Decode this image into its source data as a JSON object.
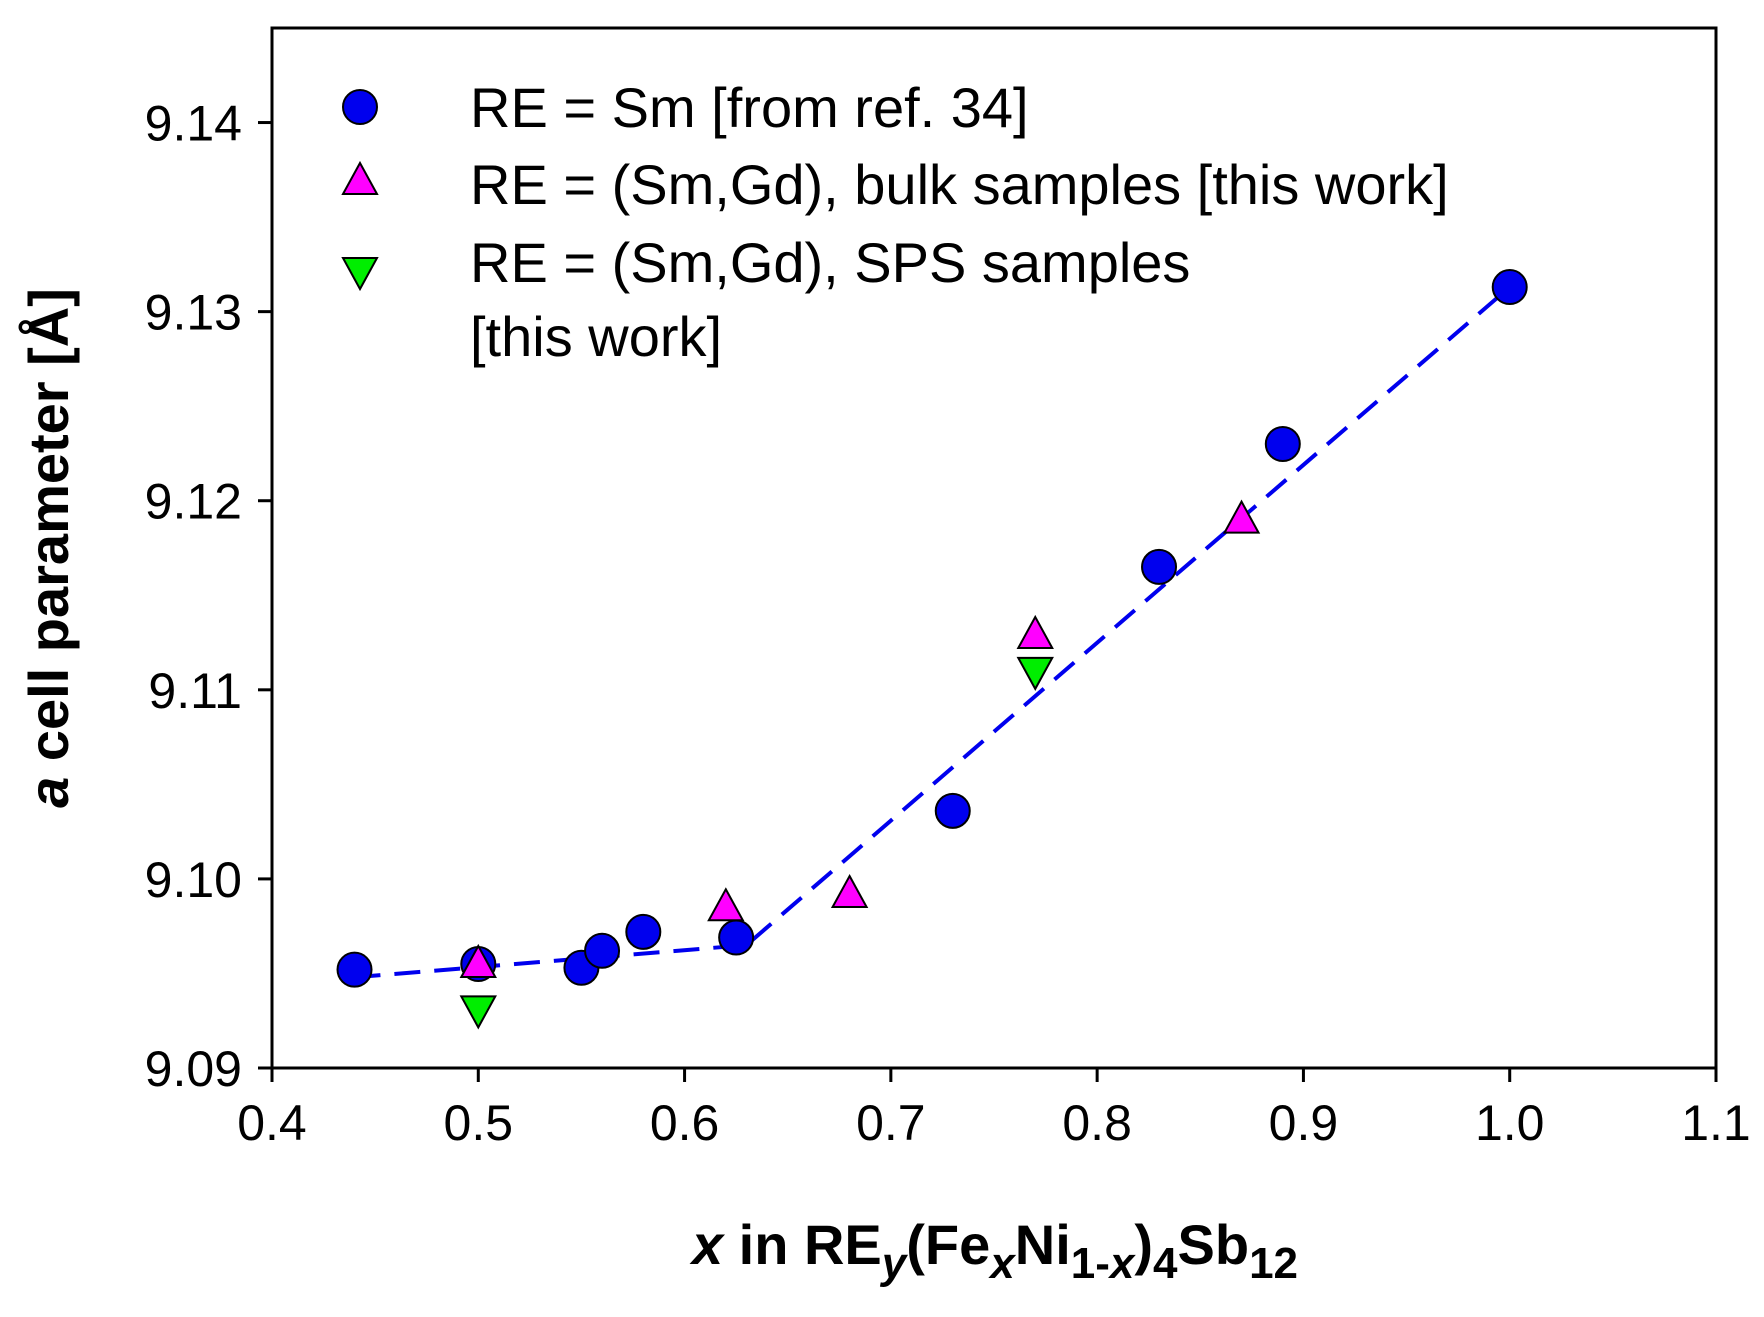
{
  "chart_data": {
    "type": "scatter",
    "xlabel": {
      "x": "x",
      "in": " in RE",
      "y": "y",
      "fe": "(Fe",
      "xsub": "x",
      "ni": "Ni",
      "sub1": "1-",
      "sub1x": "x",
      "close": ")",
      "four": "4",
      "sb": "Sb",
      "twelve": "12"
    },
    "ylabel": {
      "a": "a",
      "rest": " cell parameter [Å]"
    },
    "xlim": [
      0.4,
      1.1
    ],
    "ylim": [
      9.09,
      9.145
    ],
    "xticks": [
      0.4,
      0.5,
      0.6,
      0.7,
      0.8,
      0.9,
      1.0,
      1.1
    ],
    "xtick_labels": [
      "0.4",
      "0.5",
      "0.6",
      "0.7",
      "0.8",
      "0.9",
      "1.0",
      "1.1"
    ],
    "yticks": [
      9.09,
      9.1,
      9.11,
      9.12,
      9.13,
      9.14
    ],
    "ytick_labels": [
      "9.09",
      "9.10",
      "9.11",
      "9.12",
      "9.13",
      "9.14"
    ],
    "series": [
      {
        "name": "RE = Sm [from ref. 34]",
        "marker": "circle",
        "color": "#0000ee",
        "points": [
          [
            0.44,
            9.0952
          ],
          [
            0.5,
            9.0955
          ],
          [
            0.55,
            9.0953
          ],
          [
            0.56,
            9.0962
          ],
          [
            0.58,
            9.0972
          ],
          [
            0.625,
            9.0969
          ],
          [
            0.73,
            9.1036
          ],
          [
            0.83,
            9.1165
          ],
          [
            0.89,
            9.123
          ],
          [
            1.0,
            9.1313
          ]
        ]
      },
      {
        "name": "RE = (Sm,Gd), bulk samples [this work]",
        "marker": "triangle-up",
        "color": "#ff00ff",
        "points": [
          [
            0.5,
            9.0955
          ],
          [
            0.62,
            9.0985
          ],
          [
            0.68,
            9.0992
          ],
          [
            0.77,
            9.1129
          ],
          [
            0.87,
            9.119
          ]
        ]
      },
      {
        "name": "RE = (Sm,Gd), SPS samples",
        "name_line2": "[this work]",
        "marker": "triangle-down",
        "color": "#00ee00",
        "points": [
          [
            0.5,
            9.0931
          ],
          [
            0.77,
            9.111
          ]
        ]
      }
    ],
    "fit_line": {
      "style": "dashed",
      "color": "#0000ee",
      "points": [
        [
          0.44,
          9.0948
        ],
        [
          0.63,
          9.0965
        ],
        [
          1.0,
          9.1313
        ]
      ]
    },
    "legend_position": "top-left",
    "grid": false
  }
}
